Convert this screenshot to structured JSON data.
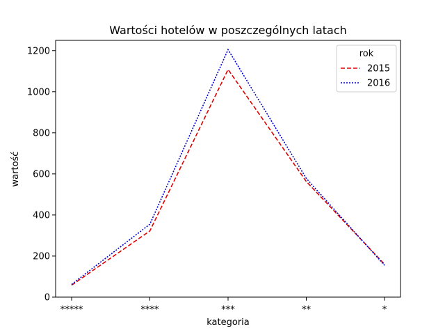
{
  "chart_data": {
    "type": "line",
    "title": "Wartości hotelów w poszczególnych latach",
    "xlabel": "kategoria",
    "ylabel": "wartość",
    "categories": [
      "*****",
      "****",
      "***",
      "**",
      "*"
    ],
    "ylim": [
      0,
      1250
    ],
    "yticks": [
      0,
      200,
      400,
      600,
      800,
      1000,
      1200
    ],
    "grid": false,
    "legend": {
      "title": "rok",
      "placement": "top-right"
    },
    "series": [
      {
        "name": "2015",
        "values": [
          58,
          322,
          1108,
          563,
          160
        ],
        "color": "#e00000",
        "style": "dashed"
      },
      {
        "name": "2016",
        "values": [
          62,
          355,
          1205,
          578,
          155
        ],
        "color": "#0000c8",
        "style": "dotted"
      }
    ]
  }
}
